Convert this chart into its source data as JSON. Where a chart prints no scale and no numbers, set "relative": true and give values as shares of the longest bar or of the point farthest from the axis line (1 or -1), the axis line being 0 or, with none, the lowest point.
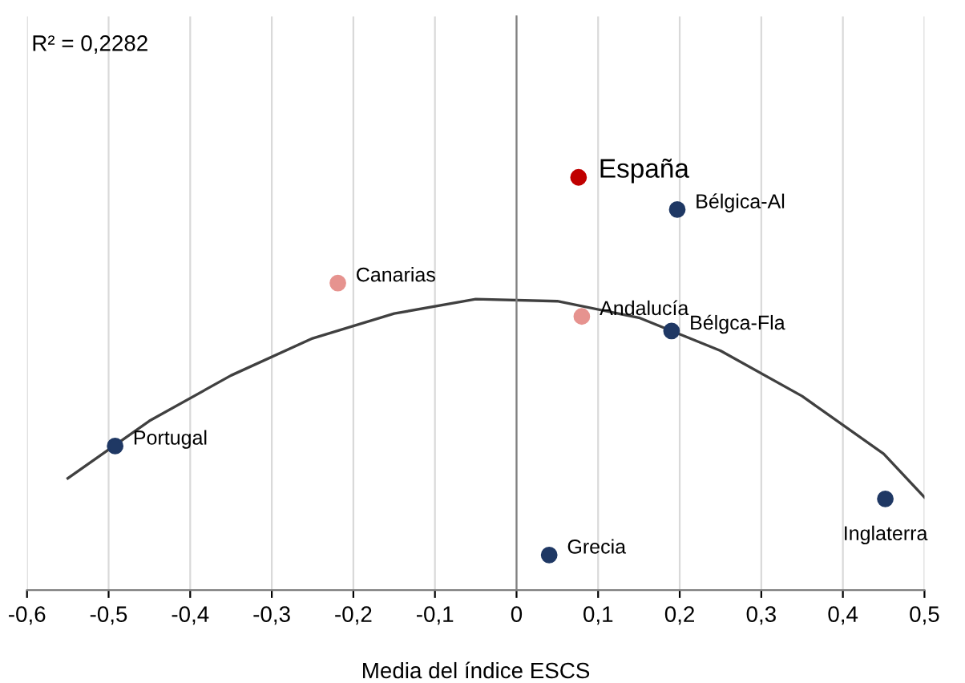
{
  "chart_data": {
    "type": "scatter",
    "relative": true,
    "xlabel": "Media del índice ESCS",
    "xlim": [
      -0.6,
      0.5
    ],
    "xticks": [
      {
        "value": -0.6,
        "label": "-0,6"
      },
      {
        "value": -0.5,
        "label": "-0,5"
      },
      {
        "value": -0.4,
        "label": "-0,4"
      },
      {
        "value": -0.3,
        "label": "-0,3"
      },
      {
        "value": -0.2,
        "label": "-0,2"
      },
      {
        "value": -0.1,
        "label": "-0,1"
      },
      0,
      {
        "value": 0.1,
        "label": "0,1"
      },
      {
        "value": 0.2,
        "label": "0,2"
      },
      {
        "value": 0.3,
        "label": "0,3"
      },
      {
        "value": 0.4,
        "label": "0,4"
      },
      {
        "value": 0.5,
        "label": "0,5"
      }
    ],
    "grid": "x",
    "legend": false,
    "marker": "circle",
    "series": [
      {
        "color": "#1f3864",
        "x": [
          0.197,
          0.19,
          -0.492,
          0.452,
          0.04
        ],
        "values": [
          0.922,
          0.628,
          0.349,
          0.221,
          0.085
        ]
      },
      {
        "color": "#e6938f",
        "x": [
          -0.219,
          0.08
        ],
        "values": [
          0.744,
          0.663
        ]
      },
      {
        "color": "#c00000",
        "x": [
          0.076
        ],
        "values": [
          1
        ]
      },
      {
        "type": "line",
        "marker": "none",
        "color": "#404040",
        "x": [
          -0.55,
          -0.45,
          -0.35,
          -0.25,
          -0.15,
          -0.05,
          0.05,
          0.15,
          0.25,
          0.35,
          0.45,
          0.5
        ],
        "values": [
          0.271,
          0.41,
          0.52,
          0.61,
          0.67,
          0.705,
          0.7,
          0.66,
          0.58,
          0.47,
          0.33,
          0.225
        ]
      }
    ],
    "annotations": [
      "R² = 0,2282",
      {
        "text": "Bélgica-Al",
        "x": 0.197,
        "y": 0.922
      },
      {
        "text": "Bélgca-Fla",
        "x": 0.19,
        "y": 0.628
      },
      {
        "text": "Portugal",
        "x": -0.492,
        "y": 0.349
      },
      {
        "text": "Inglaterra",
        "x": 0.452,
        "y": 0.221
      },
      {
        "text": "Grecia",
        "x": 0.04,
        "y": 0.085
      },
      {
        "text": "Canarias",
        "x": -0.219,
        "y": 0.744
      },
      {
        "text": "Andalucía",
        "x": 0.08,
        "y": 0.663
      },
      {
        "text": "España",
        "x": 0.076,
        "y": 1
      }
    ]
  }
}
